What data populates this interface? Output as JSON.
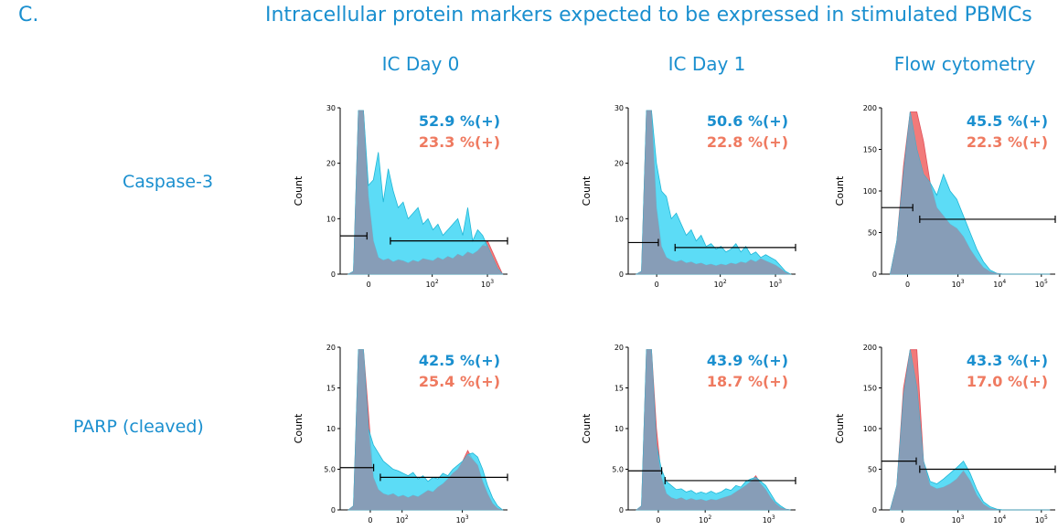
{
  "panel_letter": "C.",
  "title": "Intracellular protein markers expected to be expressed in stimulated PBMCs",
  "columns": [
    "IC Day 0",
    "IC Day 1",
    "Flow cytometry"
  ],
  "rows": [
    "Caspase-3",
    "PARP (cleaved)"
  ],
  "colors": {
    "blue_fill": "#3fd6f5",
    "red_fill": "#f27a7a",
    "overlap_fill": "#8a9bb4",
    "accent_text": "#1a8fcf",
    "red_text": "#ef7a60"
  },
  "chart_data": [
    {
      "type": "area",
      "row": "Caspase-3",
      "column": "IC Day 0",
      "ylabel": "Count",
      "ylim": [
        0,
        30
      ],
      "yticks": [
        "0",
        "10",
        "20",
        "30"
      ],
      "xticks": [
        "0",
        "10^2",
        "10^3"
      ],
      "annotations": [
        "52.9 %(+)",
        "23.3 %(+)"
      ],
      "series": [
        {
          "values": [
            0,
            0.5,
            29.5,
            29.5,
            16,
            17,
            22,
            13,
            19,
            15,
            12,
            13,
            10,
            11,
            12,
            9,
            10,
            8,
            9,
            7,
            8,
            9,
            10,
            7,
            12,
            6,
            8,
            7,
            5,
            3,
            1,
            0
          ]
        },
        {
          "values": [
            0,
            0.5,
            29.5,
            29.5,
            14,
            6,
            3,
            2.5,
            2.8,
            2.2,
            2.6,
            2.4,
            2,
            2.5,
            2.2,
            2.8,
            2.6,
            2.4,
            3,
            2.6,
            3.2,
            2.8,
            3.6,
            3.2,
            4,
            3.6,
            4.2,
            5.2,
            6,
            4,
            2,
            0
          ]
        }
      ]
    },
    {
      "type": "area",
      "row": "Caspase-3",
      "column": "IC Day 1",
      "ylabel": "Count",
      "ylim": [
        0,
        30
      ],
      "yticks": [
        "0",
        "10",
        "20",
        "30"
      ],
      "xticks": [
        "0",
        "10^2",
        "10^3"
      ],
      "annotations": [
        "50.6 %(+)",
        "22.8 %(+)"
      ],
      "series": [
        {
          "values": [
            0,
            0.5,
            29.5,
            29.5,
            20,
            15,
            14,
            10,
            11,
            9,
            7,
            8,
            6,
            7,
            5,
            5.5,
            4.5,
            5,
            4,
            4.5,
            5.5,
            4,
            5,
            3.5,
            4,
            3,
            3.5,
            3,
            2.5,
            1.5,
            0.5,
            0
          ]
        },
        {
          "values": [
            0,
            0.5,
            29.5,
            29.5,
            12,
            5,
            3,
            2.5,
            2.2,
            2.5,
            2,
            2.2,
            1.8,
            2,
            1.6,
            1.8,
            1.5,
            1.8,
            1.6,
            2,
            1.8,
            2.2,
            2,
            2.6,
            2.2,
            2.8,
            2.4,
            2,
            1.6,
            1,
            0.3,
            0
          ]
        }
      ]
    },
    {
      "type": "area",
      "row": "Caspase-3",
      "column": "Flow cytometry",
      "ylabel": "Count",
      "ylim": [
        0,
        200
      ],
      "yticks": [
        "0",
        "50",
        "100",
        "150",
        "200"
      ],
      "xticks": [
        "0",
        "10^3",
        "10^4",
        "10^5"
      ],
      "annotations": [
        "45.5 %(+)",
        "22.3 %(+)"
      ],
      "series": [
        {
          "values": [
            0,
            40,
            120,
            195,
            150,
            120,
            110,
            95,
            120,
            100,
            90,
            70,
            50,
            30,
            15,
            5,
            1,
            0,
            0,
            0,
            0,
            0,
            0,
            0,
            0
          ]
        },
        {
          "values": [
            0,
            40,
            130,
            195,
            195,
            160,
            110,
            80,
            70,
            60,
            55,
            45,
            30,
            18,
            8,
            3,
            1,
            0,
            0,
            0,
            0,
            0,
            0,
            0,
            0
          ]
        }
      ]
    },
    {
      "type": "area",
      "row": "PARP (cleaved)",
      "column": "IC Day 0",
      "ylabel": "Count",
      "ylim": [
        0,
        20
      ],
      "yticks": [
        "0",
        "5.0",
        "10",
        "15",
        "20"
      ],
      "xticks": [
        "0",
        "10^2",
        "10^3"
      ],
      "annotations": [
        "42.5 %(+)",
        "25.4 %(+)"
      ],
      "series": [
        {
          "values": [
            0,
            0.5,
            19.7,
            19.7,
            10,
            8,
            7,
            6,
            5.5,
            5,
            4.8,
            4.5,
            4.2,
            4.6,
            3.8,
            4.2,
            3.5,
            4,
            3.8,
            4.5,
            4.2,
            5,
            5.5,
            6,
            6.8,
            7,
            6.5,
            5,
            3,
            1.5,
            0.5,
            0
          ]
        },
        {
          "values": [
            0,
            0.5,
            19.7,
            19.7,
            12,
            4,
            2.5,
            2,
            1.8,
            2,
            1.6,
            1.8,
            1.5,
            1.8,
            1.6,
            2,
            2.4,
            2.2,
            2.8,
            3.2,
            3.8,
            4.5,
            5,
            6,
            7.3,
            6.2,
            5.5,
            3.5,
            2,
            0.8,
            0.2,
            0
          ]
        }
      ]
    },
    {
      "type": "area",
      "row": "PARP (cleaved)",
      "column": "IC Day 1",
      "ylabel": "Count",
      "ylim": [
        0,
        20
      ],
      "yticks": [
        "0",
        "5.0",
        "10",
        "15",
        "20"
      ],
      "xticks": [
        "0",
        "10^2",
        "10^3"
      ],
      "annotations": [
        "43.9 %(+)",
        "18.7 %(+)"
      ],
      "series": [
        {
          "values": [
            0,
            0.5,
            19.7,
            19.7,
            8,
            5,
            3.5,
            3,
            2.5,
            2.6,
            2.2,
            2.4,
            2,
            2.2,
            2,
            2.3,
            2,
            2.2,
            2.6,
            2.4,
            3,
            2.8,
            3.5,
            3.8,
            4,
            3.5,
            3,
            2,
            1,
            0.5,
            0.1,
            0
          ]
        },
        {
          "values": [
            0,
            0.5,
            19.7,
            19.7,
            10,
            4,
            2,
            1.5,
            1.3,
            1.5,
            1.2,
            1.4,
            1.2,
            1.3,
            1.1,
            1.3,
            1.2,
            1.4,
            1.6,
            1.8,
            2.2,
            2.6,
            3,
            3.5,
            4.2,
            3.2,
            2.5,
            1.5,
            0.8,
            0.3,
            0.1,
            0
          ]
        }
      ]
    },
    {
      "type": "area",
      "row": "PARP (cleaved)",
      "column": "Flow cytometry",
      "ylabel": "Count",
      "ylim": [
        0,
        200
      ],
      "yticks": [
        "0",
        "50",
        "100",
        "150",
        "200"
      ],
      "xticks": [
        "0",
        "10^3",
        "10^4",
        "10^5"
      ],
      "annotations": [
        "43.3 %(+)",
        "17.0 %(+)"
      ],
      "series": [
        {
          "values": [
            0,
            30,
            140,
            197,
            150,
            60,
            35,
            32,
            38,
            45,
            52,
            60,
            45,
            25,
            10,
            4,
            1,
            0,
            0,
            0,
            0,
            0,
            0,
            0,
            0
          ]
        },
        {
          "values": [
            0,
            30,
            150,
            197,
            197,
            60,
            30,
            26,
            28,
            32,
            38,
            48,
            36,
            18,
            7,
            2,
            0.5,
            0,
            0,
            0,
            0,
            0,
            0,
            0,
            0
          ]
        }
      ]
    }
  ]
}
